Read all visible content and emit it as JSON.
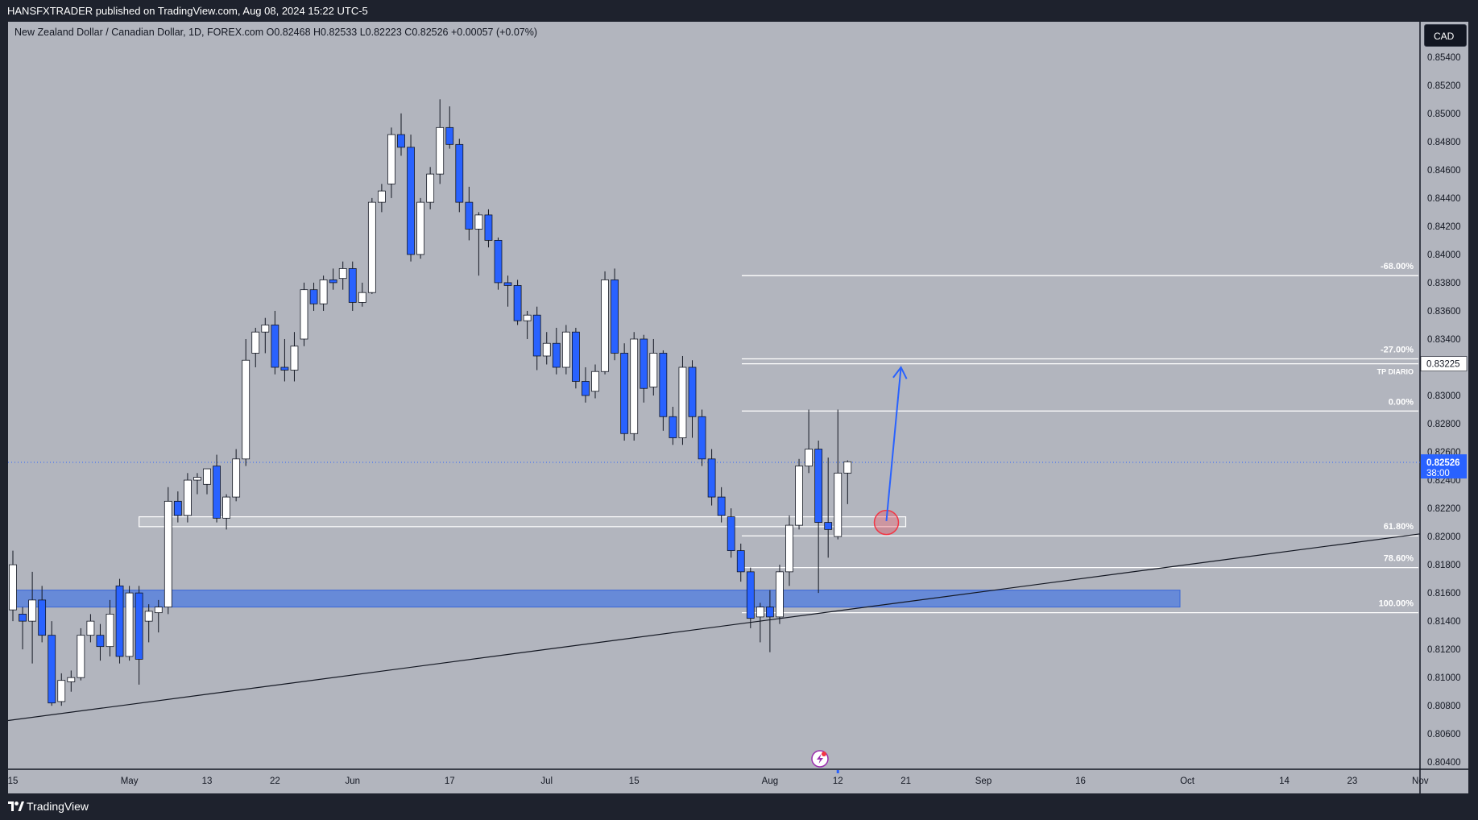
{
  "header": {
    "published": "HANSFXTRADER published on TradingView.com, Aug 08, 2024 15:22 UTC-5"
  },
  "symbol": {
    "info": "New Zealand Dollar / Canadian Dollar, 1D, FOREX.com  O0.82468  H0.82533  L0.82223  C0.82526  +0.00057 (+0.07%)"
  },
  "currency_button": "CAD",
  "footer": {
    "brand": "TradingView"
  },
  "colors": {
    "chart_bg": "#b2b5be",
    "frame": "#1e222d",
    "bull_candle": "#ffffff",
    "bear_candle": "#2962ff",
    "zone": "#4d7ce0",
    "arrow": "#2962ff",
    "marker": "#f23645"
  },
  "chart_data": {
    "type": "candlestick",
    "symbol": "NZDCAD",
    "timeframe": "1D",
    "ylim": [
      0.8035,
      0.8565
    ],
    "y_ticks": [
      0.804,
      0.806,
      0.808,
      0.81,
      0.812,
      0.814,
      0.816,
      0.818,
      0.82,
      0.822,
      0.824,
      0.826,
      0.828,
      0.83,
      0.832,
      0.834,
      0.836,
      0.838,
      0.84,
      0.842,
      0.844,
      0.846,
      0.848,
      0.85,
      0.852,
      0.854
    ],
    "x_ticks": [
      {
        "label": "15",
        "bar": 0
      },
      {
        "label": "May",
        "bar": 12
      },
      {
        "label": "13",
        "bar": 20
      },
      {
        "label": "22",
        "bar": 27
      },
      {
        "label": "Jun",
        "bar": 35
      },
      {
        "label": "17",
        "bar": 45
      },
      {
        "label": "Jul",
        "bar": 55
      },
      {
        "label": "15",
        "bar": 64
      },
      {
        "label": "Aug",
        "bar": 78
      },
      {
        "label": "12",
        "bar": 85
      },
      {
        "label": "21",
        "bar": 92
      },
      {
        "label": "Sep",
        "bar": 100
      },
      {
        "label": "16",
        "bar": 110
      },
      {
        "label": "Oct",
        "bar": 121
      },
      {
        "label": "14",
        "bar": 131
      },
      {
        "label": "23",
        "bar": 138
      },
      {
        "label": "Nov",
        "bar": 145
      }
    ],
    "candles": [
      [
        0.8148,
        0.819,
        0.814,
        0.818
      ],
      [
        0.8145,
        0.815,
        0.812,
        0.814
      ],
      [
        0.814,
        0.8175,
        0.811,
        0.8155
      ],
      [
        0.8155,
        0.8165,
        0.8125,
        0.813
      ],
      [
        0.813,
        0.814,
        0.808,
        0.8082
      ],
      [
        0.8083,
        0.8103,
        0.808,
        0.8098
      ],
      [
        0.8097,
        0.8105,
        0.809,
        0.81
      ],
      [
        0.81,
        0.8135,
        0.8098,
        0.813
      ],
      [
        0.813,
        0.8145,
        0.8125,
        0.814
      ],
      [
        0.813,
        0.8138,
        0.8112,
        0.8122
      ],
      [
        0.8122,
        0.8155,
        0.8115,
        0.8145
      ],
      [
        0.8165,
        0.817,
        0.811,
        0.8115
      ],
      [
        0.8115,
        0.8165,
        0.8112,
        0.816
      ],
      [
        0.816,
        0.8165,
        0.8095,
        0.8113
      ],
      [
        0.814,
        0.8152,
        0.8125,
        0.8147
      ],
      [
        0.8146,
        0.8155,
        0.8132,
        0.815
      ],
      [
        0.815,
        0.8235,
        0.8145,
        0.8225
      ],
      [
        0.8225,
        0.8232,
        0.821,
        0.8215
      ],
      [
        0.8215,
        0.8245,
        0.821,
        0.824
      ],
      [
        0.824,
        0.8245,
        0.823,
        0.8242
      ],
      [
        0.8237,
        0.8248,
        0.823,
        0.8248
      ],
      [
        0.825,
        0.8258,
        0.821,
        0.8213
      ],
      [
        0.8213,
        0.823,
        0.8205,
        0.8228
      ],
      [
        0.8228,
        0.8262,
        0.8225,
        0.8255
      ],
      [
        0.8255,
        0.834,
        0.825,
        0.8325
      ],
      [
        0.833,
        0.8348,
        0.832,
        0.8345
      ],
      [
        0.8345,
        0.8355,
        0.833,
        0.835
      ],
      [
        0.835,
        0.836,
        0.8315,
        0.832
      ],
      [
        0.832,
        0.834,
        0.831,
        0.8318
      ],
      [
        0.8318,
        0.8345,
        0.831,
        0.8335
      ],
      [
        0.834,
        0.838,
        0.8335,
        0.8375
      ],
      [
        0.8375,
        0.838,
        0.836,
        0.8365
      ],
      [
        0.8365,
        0.8385,
        0.836,
        0.8382
      ],
      [
        0.8382,
        0.839,
        0.8375,
        0.838
      ],
      [
        0.8383,
        0.8395,
        0.8375,
        0.839
      ],
      [
        0.839,
        0.8395,
        0.836,
        0.8366
      ],
      [
        0.8366,
        0.838,
        0.8363,
        0.8373
      ],
      [
        0.8373,
        0.844,
        0.8372,
        0.8437
      ],
      [
        0.8437,
        0.845,
        0.843,
        0.8445
      ],
      [
        0.845,
        0.849,
        0.844,
        0.8485
      ],
      [
        0.8485,
        0.85,
        0.847,
        0.8476
      ],
      [
        0.8476,
        0.8485,
        0.8395,
        0.84
      ],
      [
        0.84,
        0.844,
        0.8397,
        0.8437
      ],
      [
        0.8437,
        0.8462,
        0.8432,
        0.8457
      ],
      [
        0.8457,
        0.851,
        0.845,
        0.849
      ],
      [
        0.849,
        0.8505,
        0.8475,
        0.8478
      ],
      [
        0.8478,
        0.8482,
        0.843,
        0.8437
      ],
      [
        0.8437,
        0.8448,
        0.841,
        0.8418
      ],
      [
        0.8418,
        0.843,
        0.8385,
        0.8428
      ],
      [
        0.8428,
        0.8432,
        0.8405,
        0.841
      ],
      [
        0.841,
        0.8412,
        0.8375,
        0.838
      ],
      [
        0.838,
        0.8385,
        0.8363,
        0.8378
      ],
      [
        0.8378,
        0.8382,
        0.835,
        0.8353
      ],
      [
        0.8353,
        0.836,
        0.834,
        0.8357
      ],
      [
        0.8357,
        0.8363,
        0.8318,
        0.8328
      ],
      [
        0.8328,
        0.8345,
        0.8322,
        0.8337
      ],
      [
        0.8337,
        0.8348,
        0.8315,
        0.832
      ],
      [
        0.832,
        0.835,
        0.8315,
        0.8345
      ],
      [
        0.8345,
        0.8348,
        0.8305,
        0.831
      ],
      [
        0.831,
        0.832,
        0.8295,
        0.83
      ],
      [
        0.8303,
        0.8322,
        0.8298,
        0.8317
      ],
      [
        0.8317,
        0.8388,
        0.8315,
        0.8382
      ],
      [
        0.8382,
        0.839,
        0.8325,
        0.833
      ],
      [
        0.833,
        0.8337,
        0.8268,
        0.8273
      ],
      [
        0.8273,
        0.8345,
        0.8268,
        0.834
      ],
      [
        0.834,
        0.8343,
        0.8295,
        0.8305
      ],
      [
        0.8306,
        0.834,
        0.83,
        0.833
      ],
      [
        0.833,
        0.8332,
        0.8275,
        0.8285
      ],
      [
        0.8285,
        0.8292,
        0.8265,
        0.827
      ],
      [
        0.827,
        0.8328,
        0.8265,
        0.832
      ],
      [
        0.832,
        0.8325,
        0.827,
        0.8285
      ],
      [
        0.8285,
        0.829,
        0.825,
        0.8255
      ],
      [
        0.8255,
        0.8262,
        0.8222,
        0.8228
      ],
      [
        0.8228,
        0.8235,
        0.821,
        0.8215
      ],
      [
        0.8214,
        0.822,
        0.8185,
        0.819
      ],
      [
        0.819,
        0.8195,
        0.8168,
        0.8175
      ],
      [
        0.8175,
        0.8178,
        0.8135,
        0.8142
      ],
      [
        0.8143,
        0.8153,
        0.8125,
        0.815
      ],
      [
        0.815,
        0.8162,
        0.8118,
        0.8143
      ],
      [
        0.8143,
        0.818,
        0.8138,
        0.8175
      ],
      [
        0.8175,
        0.8215,
        0.8165,
        0.8208
      ],
      [
        0.8208,
        0.8255,
        0.8205,
        0.825
      ],
      [
        0.825,
        0.829,
        0.8245,
        0.8262
      ],
      [
        0.8262,
        0.8268,
        0.816,
        0.821
      ],
      [
        0.821,
        0.8256,
        0.8185,
        0.8205
      ],
      [
        0.82,
        0.829,
        0.8198,
        0.8245
      ],
      [
        0.8245,
        0.8254,
        0.8223,
        0.8253
      ]
    ],
    "last_price": "0.82526",
    "countdown": "38:00",
    "price_label_tp": "0.83225",
    "fib_levels": [
      {
        "label": "-68.00%",
        "price": 0.8385
      },
      {
        "label": "-27.00%",
        "price": 0.8326
      },
      {
        "label": "0.00%",
        "price": 0.8289
      },
      {
        "label": "61.80%",
        "price": 0.82005
      },
      {
        "label": "78.60%",
        "price": 0.8178
      },
      {
        "label": "100.00%",
        "price": 0.8146
      }
    ],
    "tp_label": "TP DIARIO",
    "tp_price": 0.83225,
    "support_zone": [
      0.815,
      0.8162
    ],
    "small_zone": [
      0.8207,
      0.8214
    ],
    "trendline": [
      [
        0,
        0.807
      ],
      [
        144,
        0.8201
      ]
    ],
    "entry_marker": {
      "bar": 90,
      "price": 0.821
    },
    "arrow": {
      "from": [
        90,
        0.8211
      ],
      "to": [
        91.5,
        0.832
      ]
    },
    "latest_bar": 85
  }
}
